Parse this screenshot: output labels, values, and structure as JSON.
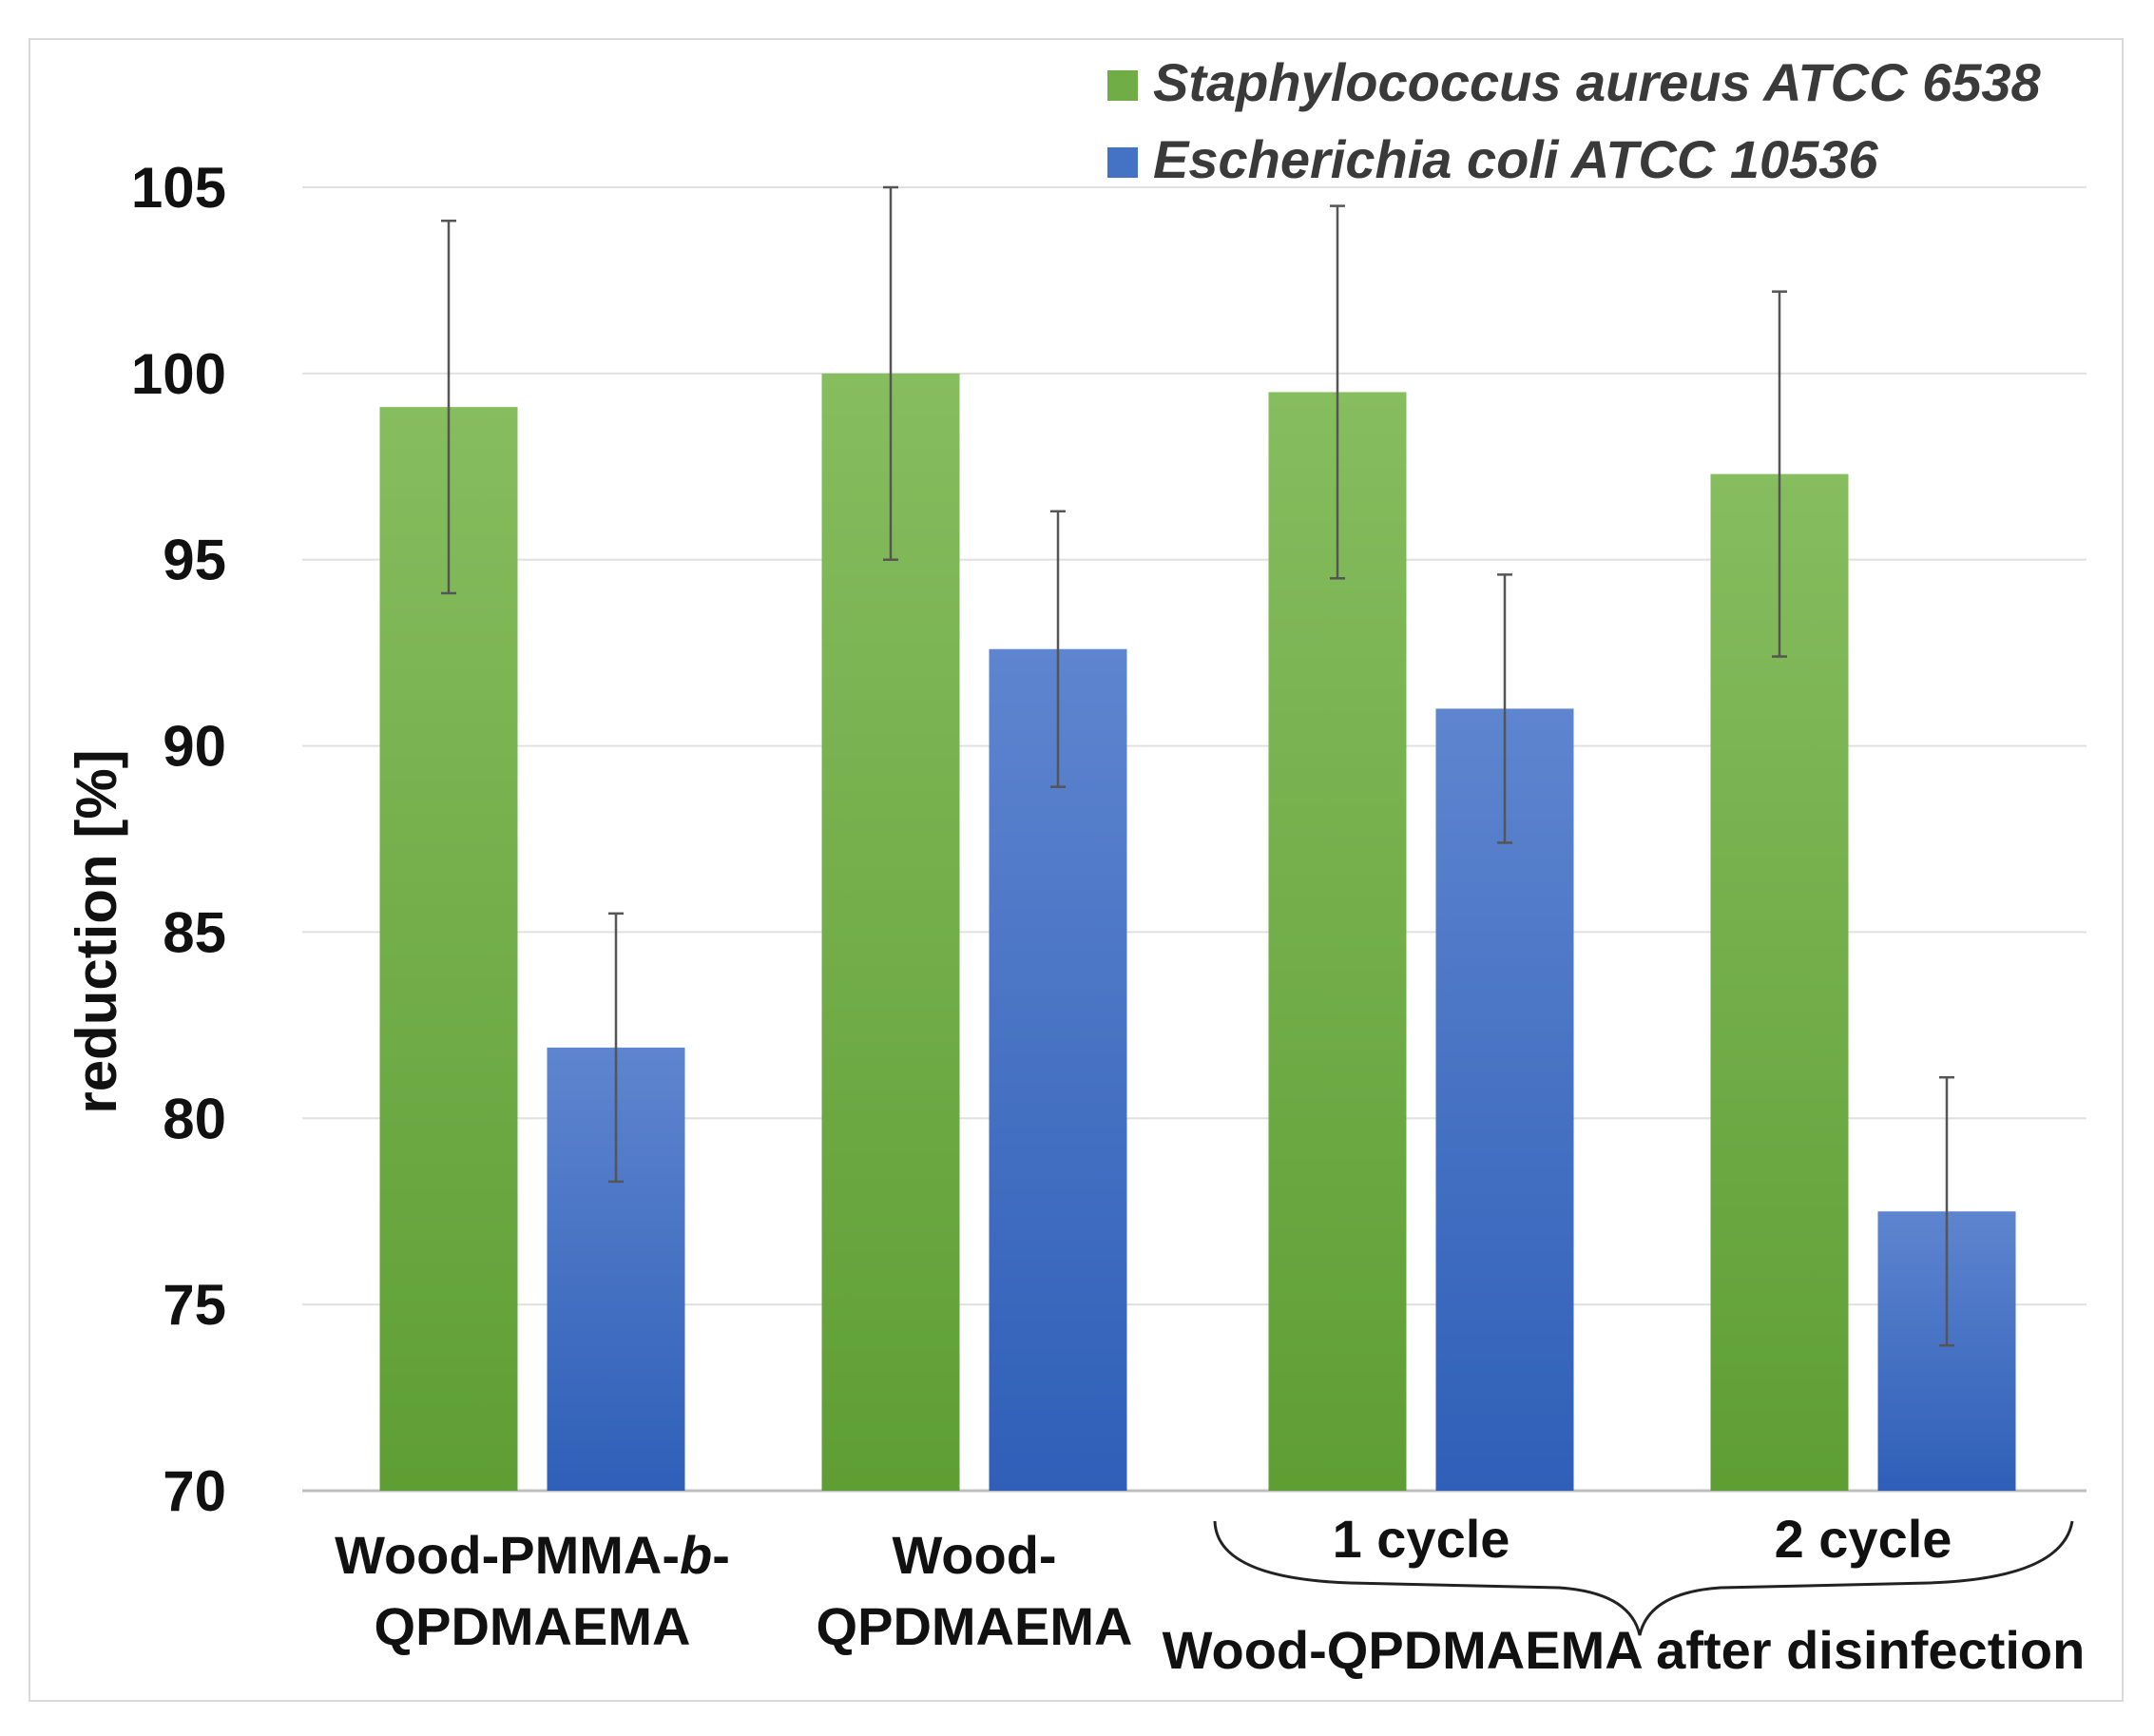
{
  "chart_data": {
    "type": "bar",
    "title": "",
    "xlabel": "",
    "ylabel": "reduction [%]",
    "ylim": [
      70,
      105
    ],
    "yticks": [
      "70",
      "75",
      "80",
      "85",
      "90",
      "95",
      "100",
      "105"
    ],
    "grid": true,
    "legend_position": "top-right",
    "categories": [
      {
        "lines": [
          "Wood-PMMA-",
          "b",
          "-"
        ],
        "line2": "QPDMAEMA"
      },
      {
        "line1": "Wood-",
        "line2": "QPDMAEMA"
      },
      {
        "line1": "1 cycle"
      },
      {
        "line1": "2 cycle"
      }
    ],
    "group_label": "Wood-QPDMAEMA after disinfection",
    "series": [
      {
        "name": "Staphylococcus aureus ATCC 6538",
        "color": "#70ad47",
        "values": [
          99.1,
          100.0,
          99.5,
          97.3
        ],
        "errors": [
          5.0,
          5.0,
          5.0,
          4.9
        ]
      },
      {
        "name": "Escherichia coli ATCC 10536",
        "color": "#4472c4",
        "values": [
          81.9,
          92.6,
          91.0,
          77.5
        ],
        "errors": [
          3.6,
          3.7,
          3.6,
          3.6
        ]
      }
    ]
  }
}
